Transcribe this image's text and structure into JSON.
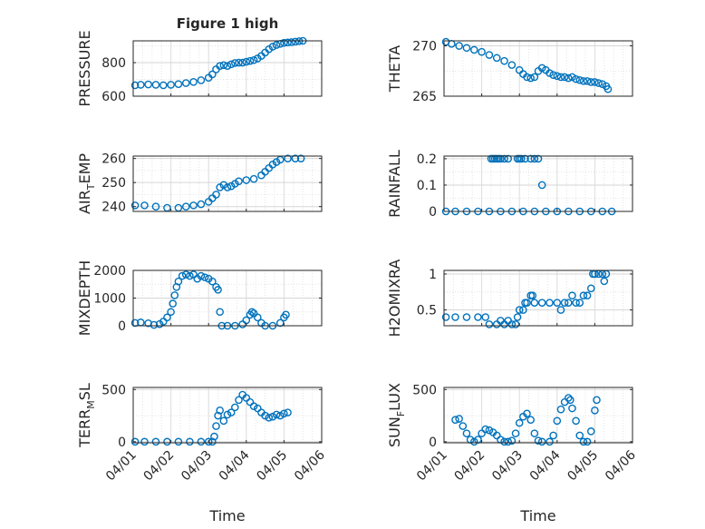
{
  "figure": {
    "title": "Figure 1 high",
    "xlabel": "Time",
    "marker_color": "#0072BD",
    "grid": "on (major + minor dotted)"
  },
  "x_ticks": [
    "04/01",
    "04/02",
    "04/03",
    "04/04",
    "04/05",
    "04/06"
  ],
  "chart_data": [
    {
      "type": "scatter",
      "id": "pressure",
      "ylabel": "PRESSURE",
      "ylim": [
        600,
        930
      ],
      "yticks": [
        600,
        800
      ],
      "extra_yticks": [
        700,
        900
      ],
      "ytick_labels": [
        "600",
        "800"
      ],
      "xlim_days": [
        0,
        5
      ],
      "x_axis": "day offsets from 04/01",
      "points": [
        [
          0.05,
          665
        ],
        [
          0.2,
          668
        ],
        [
          0.4,
          670
        ],
        [
          0.6,
          668
        ],
        [
          0.8,
          665
        ],
        [
          1.0,
          668
        ],
        [
          1.2,
          672
        ],
        [
          1.4,
          678
        ],
        [
          1.6,
          685
        ],
        [
          1.8,
          695
        ],
        [
          2.0,
          710
        ],
        [
          2.1,
          730
        ],
        [
          2.2,
          760
        ],
        [
          2.3,
          780
        ],
        [
          2.4,
          785
        ],
        [
          2.5,
          780
        ],
        [
          2.6,
          790
        ],
        [
          2.7,
          798
        ],
        [
          2.8,
          800
        ],
        [
          2.9,
          800
        ],
        [
          3.0,
          805
        ],
        [
          3.1,
          810
        ],
        [
          3.2,
          815
        ],
        [
          3.3,
          825
        ],
        [
          3.4,
          840
        ],
        [
          3.5,
          860
        ],
        [
          3.6,
          880
        ],
        [
          3.7,
          895
        ],
        [
          3.8,
          905
        ],
        [
          3.9,
          912
        ],
        [
          4.0,
          918
        ],
        [
          4.1,
          920
        ],
        [
          4.2,
          922
        ],
        [
          4.3,
          925
        ],
        [
          4.4,
          928
        ],
        [
          4.5,
          930
        ]
      ]
    },
    {
      "type": "scatter",
      "id": "theta",
      "ylabel": "THETA",
      "ylim": [
        265,
        270.5
      ],
      "yticks": [
        265,
        270
      ],
      "ytick_labels": [
        "265",
        "270"
      ],
      "xlim_days": [
        0,
        5
      ],
      "points": [
        [
          0.05,
          270.4
        ],
        [
          0.2,
          270.2
        ],
        [
          0.4,
          270.0
        ],
        [
          0.6,
          269.8
        ],
        [
          0.8,
          269.6
        ],
        [
          1.0,
          269.4
        ],
        [
          1.2,
          269.1
        ],
        [
          1.4,
          268.8
        ],
        [
          1.6,
          268.5
        ],
        [
          1.8,
          268.1
        ],
        [
          2.0,
          267.6
        ],
        [
          2.1,
          267.2
        ],
        [
          2.2,
          266.9
        ],
        [
          2.3,
          266.8
        ],
        [
          2.4,
          266.9
        ],
        [
          2.5,
          267.5
        ],
        [
          2.6,
          267.8
        ],
        [
          2.7,
          267.6
        ],
        [
          2.8,
          267.3
        ],
        [
          2.9,
          267.1
        ],
        [
          3.0,
          267.0
        ],
        [
          3.1,
          266.9
        ],
        [
          3.2,
          266.9
        ],
        [
          3.3,
          266.8
        ],
        [
          3.4,
          266.9
        ],
        [
          3.5,
          266.7
        ],
        [
          3.6,
          266.6
        ],
        [
          3.7,
          266.5
        ],
        [
          3.8,
          266.5
        ],
        [
          3.9,
          266.4
        ],
        [
          4.0,
          266.4
        ],
        [
          4.1,
          266.3
        ],
        [
          4.2,
          266.2
        ],
        [
          4.3,
          266.0
        ],
        [
          4.35,
          265.7
        ]
      ]
    },
    {
      "type": "scatter",
      "id": "air_temp",
      "ylabel_main": "AIR",
      "ylabel_sub": "T",
      "ylabel_rest": "EMP",
      "ylim": [
        238,
        261
      ],
      "yticks": [
        240,
        250,
        260
      ],
      "ytick_labels": [
        "240",
        "250",
        "260"
      ],
      "xlim_days": [
        0,
        5
      ],
      "points": [
        [
          0.05,
          240.5
        ],
        [
          0.3,
          240.5
        ],
        [
          0.6,
          240.0
        ],
        [
          0.9,
          239.5
        ],
        [
          1.2,
          239.5
        ],
        [
          1.4,
          240.0
        ],
        [
          1.6,
          240.5
        ],
        [
          1.8,
          241.0
        ],
        [
          2.0,
          242.0
        ],
        [
          2.1,
          243.5
        ],
        [
          2.2,
          245.0
        ],
        [
          2.3,
          248.0
        ],
        [
          2.4,
          249.0
        ],
        [
          2.5,
          248.0
        ],
        [
          2.6,
          248.5
        ],
        [
          2.7,
          249.5
        ],
        [
          2.8,
          250.5
        ],
        [
          3.0,
          251.0
        ],
        [
          3.2,
          251.5
        ],
        [
          3.4,
          253.0
        ],
        [
          3.5,
          254.5
        ],
        [
          3.6,
          256.0
        ],
        [
          3.7,
          257.5
        ],
        [
          3.8,
          258.5
        ],
        [
          3.9,
          259.5
        ],
        [
          4.1,
          260.0
        ],
        [
          4.3,
          260.0
        ],
        [
          4.45,
          260.0
        ]
      ]
    },
    {
      "type": "scatter",
      "id": "rainfall",
      "ylabel": "RAINFALL",
      "ylim": [
        0,
        0.21
      ],
      "yticks": [
        0,
        0.1,
        0.2
      ],
      "ytick_labels": [
        "0",
        "0.1",
        "0.2"
      ],
      "xlim_days": [
        0,
        5
      ],
      "points": [
        [
          0.05,
          0
        ],
        [
          0.3,
          0
        ],
        [
          0.6,
          0
        ],
        [
          0.9,
          0
        ],
        [
          1.2,
          0
        ],
        [
          1.5,
          0
        ],
        [
          1.8,
          0
        ],
        [
          2.1,
          0
        ],
        [
          2.4,
          0
        ],
        [
          2.7,
          0
        ],
        [
          3.0,
          0
        ],
        [
          3.3,
          0
        ],
        [
          3.6,
          0
        ],
        [
          3.9,
          0
        ],
        [
          4.2,
          0
        ],
        [
          4.45,
          0
        ],
        [
          1.25,
          0.2
        ],
        [
          1.3,
          0.2
        ],
        [
          1.35,
          0.2
        ],
        [
          1.4,
          0.2
        ],
        [
          1.45,
          0.2
        ],
        [
          1.5,
          0.2
        ],
        [
          1.6,
          0.2
        ],
        [
          1.7,
          0.2
        ],
        [
          1.95,
          0.2
        ],
        [
          2.0,
          0.2
        ],
        [
          2.05,
          0.2
        ],
        [
          2.15,
          0.2
        ],
        [
          2.3,
          0.2
        ],
        [
          2.4,
          0.2
        ],
        [
          2.5,
          0.2
        ],
        [
          2.6,
          0.1
        ]
      ]
    },
    {
      "type": "scatter",
      "id": "mixdepth",
      "ylabel": "MIXDEPTH",
      "ylim": [
        0,
        2000
      ],
      "yticks": [
        0,
        1000,
        2000
      ],
      "ytick_labels": [
        "0",
        "1000",
        "2000"
      ],
      "xlim_days": [
        0,
        5
      ],
      "points": [
        [
          0.05,
          100
        ],
        [
          0.2,
          120
        ],
        [
          0.4,
          90
        ],
        [
          0.55,
          30
        ],
        [
          0.7,
          60
        ],
        [
          0.8,
          150
        ],
        [
          0.9,
          300
        ],
        [
          1.0,
          500
        ],
        [
          1.05,
          800
        ],
        [
          1.1,
          1100
        ],
        [
          1.15,
          1400
        ],
        [
          1.2,
          1600
        ],
        [
          1.3,
          1800
        ],
        [
          1.4,
          1850
        ],
        [
          1.5,
          1800
        ],
        [
          1.6,
          1850
        ],
        [
          1.7,
          1700
        ],
        [
          1.8,
          1800
        ],
        [
          1.9,
          1750
        ],
        [
          2.0,
          1700
        ],
        [
          2.1,
          1600
        ],
        [
          2.2,
          1400
        ],
        [
          2.25,
          1300
        ],
        [
          2.3,
          500
        ],
        [
          2.35,
          0
        ],
        [
          2.5,
          0
        ],
        [
          2.7,
          0
        ],
        [
          2.9,
          50
        ],
        [
          3.0,
          200
        ],
        [
          3.1,
          400
        ],
        [
          3.15,
          500
        ],
        [
          3.2,
          450
        ],
        [
          3.3,
          300
        ],
        [
          3.4,
          100
        ],
        [
          3.5,
          0
        ],
        [
          3.7,
          0
        ],
        [
          3.9,
          100
        ],
        [
          4.0,
          300
        ],
        [
          4.05,
          400
        ]
      ]
    },
    {
      "type": "scatter",
      "id": "h2omixra",
      "ylabel": "H2OMIXRA",
      "ylim": [
        0.28,
        1.05
      ],
      "yticks": [
        0.5,
        1
      ],
      "ytick_labels": [
        "0.5",
        "1"
      ],
      "xlim_days": [
        0,
        5
      ],
      "points": [
        [
          0.05,
          0.4
        ],
        [
          0.3,
          0.4
        ],
        [
          0.6,
          0.4
        ],
        [
          0.9,
          0.4
        ],
        [
          1.1,
          0.4
        ],
        [
          1.2,
          0.3
        ],
        [
          1.4,
          0.3
        ],
        [
          1.6,
          0.3
        ],
        [
          1.8,
          0.3
        ],
        [
          1.9,
          0.3
        ],
        [
          1.5,
          0.35
        ],
        [
          1.7,
          0.35
        ],
        [
          1.95,
          0.4
        ],
        [
          2.0,
          0.5
        ],
        [
          2.1,
          0.5
        ],
        [
          2.15,
          0.6
        ],
        [
          2.2,
          0.6
        ],
        [
          2.3,
          0.7
        ],
        [
          2.35,
          0.7
        ],
        [
          2.4,
          0.6
        ],
        [
          2.6,
          0.6
        ],
        [
          2.8,
          0.6
        ],
        [
          3.0,
          0.6
        ],
        [
          3.1,
          0.5
        ],
        [
          3.2,
          0.6
        ],
        [
          3.3,
          0.6
        ],
        [
          3.4,
          0.7
        ],
        [
          3.5,
          0.6
        ],
        [
          3.6,
          0.6
        ],
        [
          3.7,
          0.7
        ],
        [
          3.8,
          0.7
        ],
        [
          3.9,
          0.8
        ],
        [
          3.95,
          1.0
        ],
        [
          4.0,
          1.0
        ],
        [
          4.1,
          1.0
        ],
        [
          4.2,
          1.0
        ],
        [
          4.3,
          1.0
        ],
        [
          4.25,
          0.9
        ]
      ]
    },
    {
      "type": "scatter",
      "id": "terr_msl",
      "ylabel_main": "TERR",
      "ylabel_sub": "M",
      "ylabel_rest": "SL",
      "ylim": [
        -10,
        520
      ],
      "yticks": [
        0,
        500
      ],
      "ytick_labels": [
        "0",
        "500"
      ],
      "xlim_days": [
        0,
        5
      ],
      "points": [
        [
          0.05,
          0
        ],
        [
          0.3,
          0
        ],
        [
          0.6,
          0
        ],
        [
          0.9,
          0
        ],
        [
          1.2,
          0
        ],
        [
          1.5,
          0
        ],
        [
          1.8,
          0
        ],
        [
          2.0,
          0
        ],
        [
          2.1,
          0
        ],
        [
          2.15,
          50
        ],
        [
          2.2,
          150
        ],
        [
          2.25,
          250
        ],
        [
          2.3,
          300
        ],
        [
          2.4,
          200
        ],
        [
          2.5,
          260
        ],
        [
          2.6,
          280
        ],
        [
          2.7,
          330
        ],
        [
          2.8,
          400
        ],
        [
          2.9,
          450
        ],
        [
          3.0,
          420
        ],
        [
          3.1,
          380
        ],
        [
          3.2,
          340
        ],
        [
          3.3,
          320
        ],
        [
          3.4,
          280
        ],
        [
          3.5,
          250
        ],
        [
          3.6,
          230
        ],
        [
          3.7,
          240
        ],
        [
          3.8,
          260
        ],
        [
          3.9,
          250
        ],
        [
          4.0,
          270
        ],
        [
          4.1,
          280
        ]
      ]
    },
    {
      "type": "scatter",
      "id": "sun_flux",
      "ylabel_main": "SUN",
      "ylabel_sub": "F",
      "ylabel_rest": "LUX",
      "ylim": [
        -10,
        520
      ],
      "yticks": [
        0,
        500
      ],
      "ytick_labels": [
        "0",
        "500"
      ],
      "xlim_days": [
        0,
        5
      ],
      "points": [
        [
          0.3,
          210
        ],
        [
          0.4,
          220
        ],
        [
          0.5,
          150
        ],
        [
          0.6,
          80
        ],
        [
          0.7,
          20
        ],
        [
          0.8,
          0
        ],
        [
          0.9,
          20
        ],
        [
          1.0,
          80
        ],
        [
          1.1,
          120
        ],
        [
          1.2,
          110
        ],
        [
          1.3,
          90
        ],
        [
          1.4,
          60
        ],
        [
          1.5,
          20
        ],
        [
          1.6,
          0
        ],
        [
          1.7,
          0
        ],
        [
          1.8,
          10
        ],
        [
          1.9,
          80
        ],
        [
          2.0,
          180
        ],
        [
          2.1,
          240
        ],
        [
          2.2,
          270
        ],
        [
          2.3,
          210
        ],
        [
          2.4,
          80
        ],
        [
          2.5,
          10
        ],
        [
          2.6,
          0
        ],
        [
          2.8,
          0
        ],
        [
          2.9,
          60
        ],
        [
          3.0,
          200
        ],
        [
          3.1,
          310
        ],
        [
          3.2,
          380
        ],
        [
          3.3,
          420
        ],
        [
          3.35,
          400
        ],
        [
          3.4,
          320
        ],
        [
          3.5,
          200
        ],
        [
          3.6,
          60
        ],
        [
          3.7,
          0
        ],
        [
          3.8,
          0
        ],
        [
          3.9,
          100
        ],
        [
          4.0,
          300
        ],
        [
          4.05,
          400
        ]
      ]
    }
  ]
}
